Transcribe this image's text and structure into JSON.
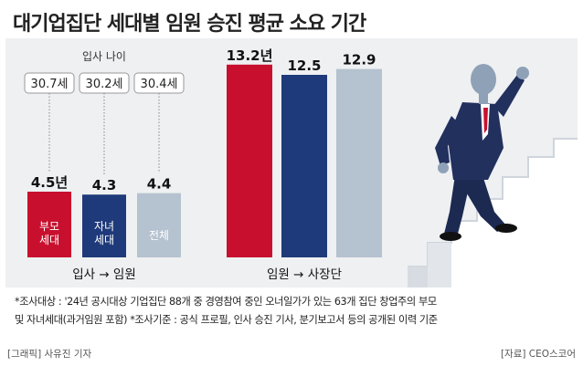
{
  "title": "대기업집단 세대별 임원 승진 평균 소요 기간",
  "colors": {
    "parent": "#c8102e",
    "child": "#1f3a7a",
    "all": "#b5c2cf",
    "panel": "#eef0f2"
  },
  "chart_data": [
    {
      "type": "bar",
      "group_label": "입사 → 임원",
      "value_unit": "년",
      "categories": [
        "부모\n세대",
        "자녀\n세대",
        "전체"
      ],
      "values": [
        4.5,
        4.3,
        4.4
      ],
      "value_labels": [
        "4.5년",
        "4.3",
        "4.4"
      ],
      "entry_age_title": "입사 나이",
      "entry_age_values": [
        30.7,
        30.2,
        30.4
      ],
      "entry_age_labels": [
        "30.7세",
        "30.2세",
        "30.4세"
      ],
      "ylim": [
        0,
        14
      ]
    },
    {
      "type": "bar",
      "group_label": "임원 → 사장단",
      "value_unit": "년",
      "values": [
        13.2,
        12.5,
        12.9
      ],
      "value_labels": [
        "13.2년",
        "12.5",
        "12.9"
      ],
      "ylim": [
        0,
        14
      ]
    }
  ],
  "footnote_line1": "*조사대상 : '24년 공시대상 기업집단 88개 중 경영참여 중인 오너일가가 있는 63개 집단 창업주의 부모",
  "footnote_line2": "및 자녀세대(과거임원 포함) *조사기준 : 공식 프로필, 인사 승진 기사, 분기보고서 등의 공개된 이력 기준",
  "credit_left": "[그래픽] 사유진 기자",
  "credit_right": "[자료] CEO스코어"
}
